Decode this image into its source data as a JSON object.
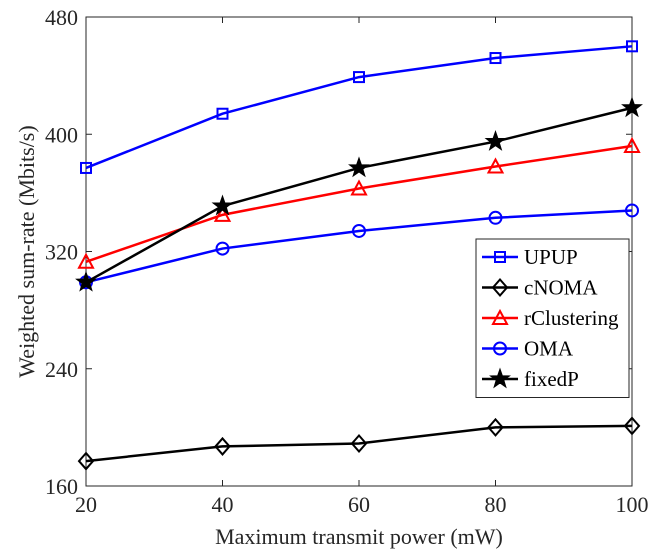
{
  "chart_data": {
    "type": "line",
    "xlabel": "Maximum transmit power (mW)",
    "ylabel": "Weighted sum-rate (Mbits/s)",
    "x": [
      20,
      40,
      60,
      80,
      100
    ],
    "xlim": [
      20,
      100
    ],
    "ylim": [
      160,
      480
    ],
    "xticks": [
      20,
      40,
      60,
      80,
      100
    ],
    "yticks": [
      160,
      240,
      320,
      400,
      480
    ],
    "grid": false,
    "legend_position": "right",
    "series": [
      {
        "name": "UPUP",
        "color": "#0000ff",
        "marker": "square",
        "values": [
          377,
          414,
          439,
          452,
          460
        ]
      },
      {
        "name": "cNOMA",
        "color": "#000000",
        "marker": "diamond",
        "values": [
          177,
          187,
          189,
          200,
          201
        ]
      },
      {
        "name": "rClustering",
        "color": "#ff0000",
        "marker": "triangle",
        "values": [
          313,
          345,
          363,
          378,
          392
        ]
      },
      {
        "name": "OMA",
        "color": "#0000ff",
        "marker": "circle",
        "values": [
          299,
          322,
          334,
          343,
          348
        ]
      },
      {
        "name": "fixedP",
        "color": "#000000",
        "marker": "star",
        "values": [
          299,
          351,
          377,
          395,
          418
        ]
      }
    ]
  }
}
